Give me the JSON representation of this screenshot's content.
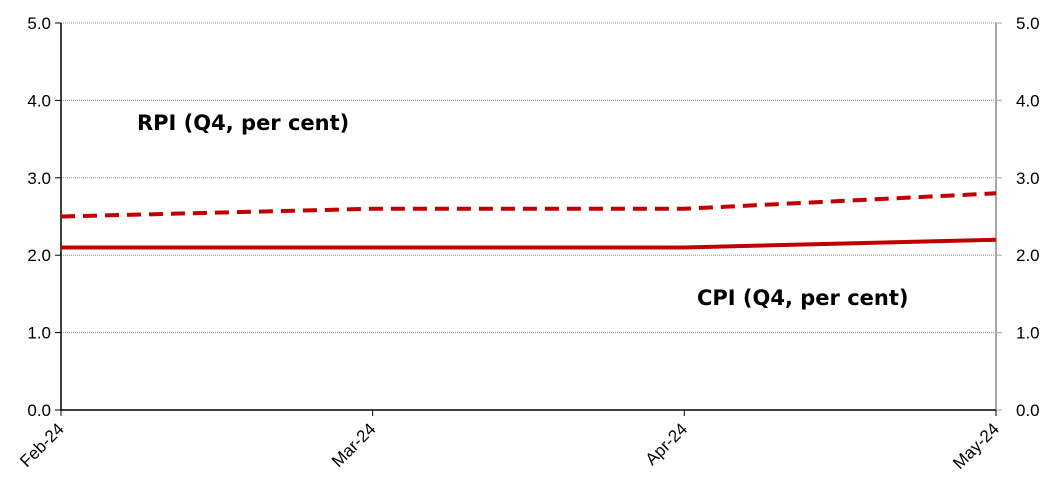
{
  "colors": {
    "series": "#c00000",
    "grid": "#8c8c8c",
    "axis": "#000000",
    "right_axis": "#a6a6a6"
  },
  "chart_data": {
    "type": "line",
    "title": "",
    "xlabel": "",
    "ylabel": "",
    "categories": [
      "Feb-24",
      "Mar-24",
      "Apr-24",
      "May-24"
    ],
    "ylim": [
      0,
      5
    ],
    "yticks": [
      "0.0",
      "1.0",
      "2.0",
      "3.0",
      "4.0",
      "5.0"
    ],
    "secondary_yticks": [
      "0.0",
      "1.0",
      "2.0",
      "3.0",
      "4.0",
      "5.0"
    ],
    "grid": true,
    "legend": "none",
    "series": [
      {
        "name": "RPI (Q4, per cent)",
        "values": [
          2.5,
          2.6,
          2.6,
          2.8
        ],
        "style": "dashed"
      },
      {
        "name": "CPI (Q4, per cent)",
        "values": [
          2.1,
          2.1,
          2.1,
          2.2
        ],
        "style": "solid"
      }
    ]
  }
}
